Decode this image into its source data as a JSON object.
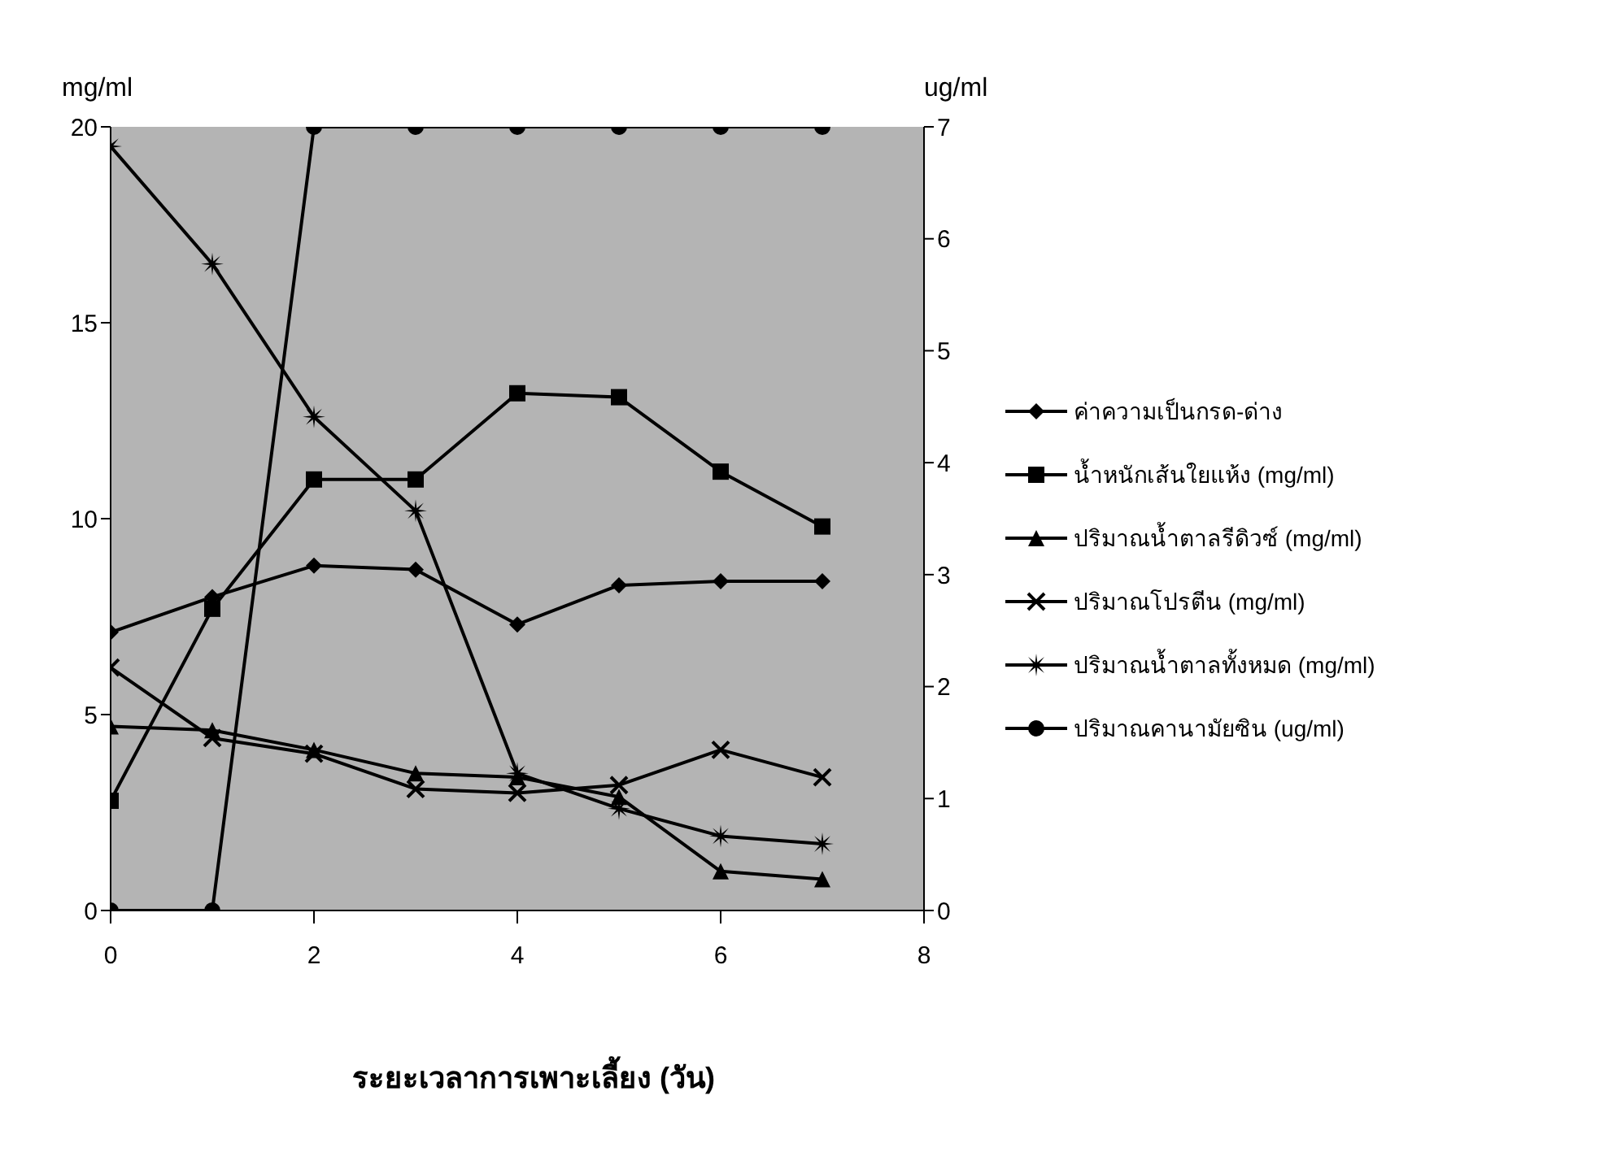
{
  "chart_data": {
    "type": "line",
    "xlabel": "ระยะเวลาการเพาะเลี้ยง (วัน)",
    "ylabel": "mg/ml",
    "y2label": "ug/ml",
    "x": [
      0,
      1,
      2,
      3,
      4,
      5,
      6,
      7
    ],
    "xlim": [
      0,
      8
    ],
    "xticks": [
      0,
      2,
      4,
      6,
      8
    ],
    "ylim": [
      0,
      20
    ],
    "yticks": [
      0,
      5,
      10,
      15,
      20
    ],
    "y2lim": [
      0,
      7
    ],
    "y2ticks": [
      0,
      1,
      2,
      3,
      4,
      5,
      6,
      7
    ],
    "grid": false,
    "legend": "right",
    "line_style": "solid",
    "series": [
      {
        "name": "ค่าความเป็นกรด-ด่าง",
        "color": "#000000",
        "marker": "diamond",
        "values": [
          7.1,
          8.0,
          8.8,
          8.7,
          7.3,
          8.3,
          8.4,
          8.4
        ]
      },
      {
        "name": "น้ำหนักเส้นใยแห้ง (mg/ml)",
        "color": "#000000",
        "marker": "square",
        "values": [
          2.8,
          7.7,
          11.0,
          11.0,
          13.2,
          13.1,
          11.2,
          9.8
        ]
      },
      {
        "name": "ปริมาณน้ำตาลรีดิวซ์ (mg/ml)",
        "color": "#000000",
        "marker": "triangle",
        "values": [
          4.7,
          4.6,
          4.1,
          3.5,
          3.4,
          2.9,
          1.0,
          0.8
        ]
      },
      {
        "name": "ปริมาณโปรตีน (mg/ml)",
        "color": "#000000",
        "marker": "cross",
        "values": [
          6.2,
          4.4,
          4.0,
          3.1,
          3.0,
          3.2,
          4.1,
          3.4
        ]
      },
      {
        "name": "ปริมาณน้ำตาลทั้งหมด (mg/ml)",
        "color": "#000000",
        "marker": "star",
        "values": [
          19.5,
          16.5,
          12.6,
          10.2,
          3.5,
          2.6,
          1.9,
          1.7
        ]
      },
      {
        "name": "ปริมาณคานามัยซิน (ug/ml)",
        "color": "#000000",
        "marker": "circle",
        "axis": "y2",
        "values": [
          0,
          0,
          7,
          7,
          7,
          7,
          7,
          7
        ]
      }
    ]
  }
}
